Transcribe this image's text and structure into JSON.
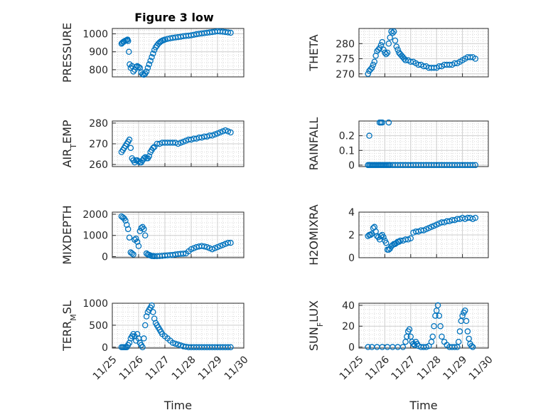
{
  "figure": {
    "title": "Figure 3 low",
    "marker_color": "#0072BD",
    "axis_color": "#262626",
    "grid": true,
    "minor_grid": true
  },
  "chart_data": [
    {
      "type": "scatter",
      "name": "PRESSURE",
      "ylabel": "PRESSURE",
      "xlim": [
        0,
        5
      ],
      "ylim": [
        760,
        1030
      ],
      "yticks": [
        800,
        900,
        1000
      ],
      "xtick_labels": [],
      "x": [
        0.35,
        0.38,
        0.42,
        0.45,
        0.5,
        0.55,
        0.58,
        0.6,
        0.63,
        0.66,
        0.7,
        0.75,
        0.8,
        0.85,
        0.9,
        0.95,
        1.0,
        1.05,
        1.1,
        1.15,
        1.2,
        1.25,
        1.3,
        1.35,
        1.4,
        1.45,
        1.5,
        1.55,
        1.6,
        1.65,
        1.7,
        1.75,
        1.8,
        1.85,
        1.9,
        1.95,
        2.0,
        2.1,
        2.2,
        2.3,
        2.4,
        2.5,
        2.6,
        2.7,
        2.8,
        2.9,
        3.0,
        3.1,
        3.2,
        3.3,
        3.4,
        3.5,
        3.6,
        3.7,
        3.8,
        3.9,
        4.0,
        4.1,
        4.2,
        4.3,
        4.4,
        4.5
      ],
      "y": [
        945,
        950,
        955,
        958,
        962,
        965,
        968,
        960,
        900,
        830,
        810,
        820,
        790,
        800,
        815,
        820,
        815,
        810,
        785,
        775,
        772,
        778,
        790,
        810,
        830,
        850,
        870,
        890,
        910,
        925,
        935,
        945,
        952,
        958,
        962,
        965,
        968,
        972,
        975,
        978,
        980,
        982,
        984,
        987,
        989,
        990,
        992,
        995,
        998,
        1000,
        1002,
        1004,
        1006,
        1008,
        1010,
        1012,
        1014,
        1013,
        1012,
        1010,
        1008,
        1006
      ]
    },
    {
      "type": "scatter",
      "name": "THETA",
      "ylabel": "THETA",
      "xlim": [
        0,
        5
      ],
      "ylim": [
        269,
        285
      ],
      "yticks": [
        270,
        275,
        280
      ],
      "xtick_labels": [],
      "x": [
        0.35,
        0.4,
        0.45,
        0.5,
        0.55,
        0.6,
        0.65,
        0.7,
        0.75,
        0.8,
        0.85,
        0.9,
        0.95,
        1.0,
        1.05,
        1.1,
        1.15,
        1.2,
        1.25,
        1.3,
        1.35,
        1.4,
        1.45,
        1.5,
        1.55,
        1.6,
        1.65,
        1.7,
        1.75,
        1.8,
        1.9,
        2.0,
        2.1,
        2.2,
        2.3,
        2.4,
        2.5,
        2.6,
        2.7,
        2.8,
        2.9,
        3.0,
        3.1,
        3.2,
        3.3,
        3.4,
        3.5,
        3.6,
        3.7,
        3.8,
        3.9,
        4.0,
        4.1,
        4.2,
        4.3,
        4.4,
        4.5
      ],
      "y": [
        270,
        271,
        271.5,
        272,
        273,
        274,
        276,
        277.5,
        278,
        278.5,
        279.5,
        280.5,
        278,
        277,
        276.5,
        277,
        280,
        282,
        284,
        283.5,
        284,
        281,
        279,
        278,
        277,
        276.5,
        276,
        275.5,
        275,
        274.5,
        274.5,
        274,
        274,
        273.5,
        273,
        273,
        272.5,
        272.5,
        272,
        272,
        272,
        272,
        272.5,
        272.5,
        273,
        273,
        273,
        273,
        273.5,
        273.5,
        274,
        274.5,
        275,
        275.5,
        275.5,
        275.5,
        275
      ]
    },
    {
      "type": "scatter",
      "name": "AIR_TEMP",
      "ylabel": "AIR_TEMP",
      "xlim": [
        0,
        5
      ],
      "ylim": [
        259,
        281
      ],
      "yticks": [
        260,
        270,
        280
      ],
      "xtick_labels": [],
      "x": [
        0.35,
        0.4,
        0.45,
        0.5,
        0.55,
        0.6,
        0.65,
        0.7,
        0.75,
        0.8,
        0.85,
        0.9,
        0.95,
        1.0,
        1.05,
        1.1,
        1.15,
        1.2,
        1.25,
        1.3,
        1.35,
        1.4,
        1.45,
        1.5,
        1.55,
        1.6,
        1.7,
        1.8,
        1.9,
        2.0,
        2.1,
        2.2,
        2.3,
        2.4,
        2.5,
        2.6,
        2.7,
        2.8,
        2.9,
        3.0,
        3.1,
        3.2,
        3.3,
        3.4,
        3.5,
        3.6,
        3.7,
        3.8,
        3.9,
        4.0,
        4.1,
        4.2,
        4.3,
        4.4,
        4.5
      ],
      "y": [
        266,
        267,
        268,
        269,
        270,
        271,
        272,
        268,
        263,
        262,
        261,
        262,
        262,
        261.5,
        261,
        261,
        262,
        263,
        263.5,
        263,
        263,
        264,
        266,
        267,
        268,
        268.5,
        270,
        270,
        270.5,
        270.5,
        270.5,
        270.5,
        270.5,
        270.5,
        270,
        270.5,
        271,
        271.5,
        272,
        272,
        272.5,
        272.5,
        273,
        273,
        273.5,
        273.5,
        274,
        274,
        274.5,
        275,
        275.5,
        276,
        276.5,
        276,
        275.5
      ]
    },
    {
      "type": "scatter",
      "name": "RAINFALL",
      "ylabel": "RAINFALL",
      "xlim": [
        0,
        5
      ],
      "ylim": [
        -0.01,
        0.3
      ],
      "yticks": [
        0,
        0.1,
        0.2
      ],
      "xtick_labels": [],
      "x": [
        0.35,
        0.4,
        0.45,
        0.5,
        0.55,
        0.6,
        0.65,
        0.7,
        0.75,
        0.8,
        0.85,
        0.9,
        0.95,
        1.0,
        1.05,
        1.1,
        1.15,
        1.2,
        1.3,
        1.4,
        1.5,
        1.6,
        1.7,
        1.8,
        1.9,
        2.0,
        2.1,
        2.2,
        2.3,
        2.4,
        2.5,
        2.6,
        2.7,
        2.8,
        2.9,
        3.0,
        3.1,
        3.2,
        3.3,
        3.4,
        3.5,
        3.6,
        3.7,
        3.8,
        3.9,
        4.0,
        4.1,
        4.2,
        4.3,
        4.4,
        4.5,
        0.4,
        0.8,
        0.85,
        0.9,
        1.15
      ],
      "y": [
        0,
        0,
        0,
        0,
        0,
        0,
        0,
        0,
        0,
        0,
        0,
        0,
        0,
        0,
        0,
        0,
        0,
        0,
        0,
        0,
        0,
        0,
        0,
        0,
        0,
        0,
        0,
        0,
        0,
        0,
        0,
        0,
        0,
        0,
        0,
        0,
        0,
        0,
        0,
        0,
        0,
        0,
        0,
        0,
        0,
        0,
        0,
        0,
        0,
        0,
        0,
        0.2,
        0.29,
        0.29,
        0.29,
        0.29
      ]
    },
    {
      "type": "scatter",
      "name": "MIXDEPTH",
      "ylabel": "MIXDEPTH",
      "xlim": [
        0,
        5
      ],
      "ylim": [
        -50,
        2100
      ],
      "yticks": [
        0,
        1000,
        2000
      ],
      "xtick_labels": [],
      "x": [
        0.35,
        0.4,
        0.45,
        0.5,
        0.55,
        0.6,
        0.65,
        0.7,
        0.75,
        0.8,
        0.85,
        0.9,
        0.95,
        1.0,
        1.05,
        1.1,
        1.15,
        1.2,
        1.25,
        1.3,
        1.35,
        1.4,
        1.45,
        1.5,
        1.55,
        1.6,
        1.7,
        1.8,
        1.9,
        2.0,
        2.1,
        2.2,
        2.3,
        2.4,
        2.5,
        2.6,
        2.7,
        2.8,
        2.9,
        3.0,
        3.1,
        3.2,
        3.3,
        3.4,
        3.5,
        3.6,
        3.7,
        3.8,
        3.9,
        4.0,
        4.1,
        4.2,
        4.3,
        4.4,
        4.5
      ],
      "y": [
        1900,
        1850,
        1800,
        1700,
        1500,
        1300,
        900,
        200,
        150,
        100,
        800,
        850,
        700,
        500,
        1200,
        1350,
        1400,
        1300,
        1000,
        150,
        100,
        80,
        50,
        30,
        30,
        20,
        20,
        30,
        40,
        50,
        60,
        70,
        80,
        100,
        120,
        130,
        140,
        150,
        250,
        350,
        400,
        450,
        480,
        500,
        480,
        450,
        400,
        350,
        400,
        450,
        500,
        550,
        600,
        650,
        650
      ]
    },
    {
      "type": "scatter",
      "name": "H2OMIXRA",
      "ylabel": "H2OMIXRA",
      "xlim": [
        0,
        5
      ],
      "ylim": [
        0,
        4
      ],
      "yticks": [
        0,
        2,
        4
      ],
      "xtick_labels": [],
      "x": [
        0.35,
        0.4,
        0.45,
        0.5,
        0.55,
        0.6,
        0.65,
        0.7,
        0.75,
        0.8,
        0.85,
        0.9,
        0.95,
        1.0,
        1.05,
        1.1,
        1.15,
        1.2,
        1.25,
        1.3,
        1.35,
        1.4,
        1.45,
        1.5,
        1.55,
        1.6,
        1.7,
        1.8,
        1.9,
        2.0,
        2.1,
        2.2,
        2.3,
        2.4,
        2.5,
        2.6,
        2.7,
        2.8,
        2.9,
        3.0,
        3.1,
        3.2,
        3.3,
        3.4,
        3.5,
        3.6,
        3.7,
        3.8,
        3.9,
        4.0,
        4.1,
        4.2,
        4.3,
        4.4,
        4.5
      ],
      "y": [
        1.9,
        2.0,
        2.0,
        2.1,
        2.6,
        2.7,
        2.3,
        1.9,
        1.8,
        1.6,
        1.9,
        2.0,
        1.8,
        1.5,
        1.3,
        0.7,
        0.7,
        0.8,
        1.0,
        1.1,
        1.2,
        1.2,
        1.3,
        1.4,
        1.4,
        1.5,
        1.5,
        1.6,
        1.6,
        1.7,
        2.2,
        2.3,
        2.3,
        2.4,
        2.4,
        2.5,
        2.6,
        2.7,
        2.8,
        2.9,
        3.0,
        3.1,
        3.1,
        3.2,
        3.2,
        3.3,
        3.3,
        3.4,
        3.4,
        3.5,
        3.4,
        3.5,
        3.5,
        3.4,
        3.5
      ]
    },
    {
      "type": "scatter",
      "name": "TERR_MSL",
      "ylabel": "TERR_MSL",
      "xlim": [
        0,
        5
      ],
      "ylim": [
        -20,
        1000
      ],
      "yticks": [
        0,
        500,
        1000
      ],
      "xtick_labels": [
        "11/25",
        "11/26",
        "11/27",
        "11/28",
        "11/29",
        "11/30"
      ],
      "xlabel": "Time",
      "x": [
        0.35,
        0.4,
        0.45,
        0.5,
        0.55,
        0.6,
        0.65,
        0.7,
        0.75,
        0.8,
        0.85,
        0.9,
        0.95,
        1.0,
        1.05,
        1.1,
        1.15,
        1.2,
        1.25,
        1.3,
        1.35,
        1.4,
        1.45,
        1.5,
        1.55,
        1.6,
        1.65,
        1.7,
        1.75,
        1.8,
        1.85,
        1.9,
        2.0,
        2.1,
        2.2,
        2.3,
        2.4,
        2.5,
        2.6,
        2.7,
        2.8,
        2.9,
        3.0,
        3.1,
        3.2,
        3.3,
        3.4,
        3.5,
        3.6,
        3.7,
        3.8,
        3.9,
        4.0,
        4.1,
        4.2,
        4.3,
        4.4,
        4.5
      ],
      "y": [
        0,
        0,
        0,
        0,
        0,
        50,
        100,
        200,
        250,
        300,
        250,
        150,
        300,
        200,
        100,
        50,
        0,
        200,
        500,
        700,
        800,
        850,
        900,
        950,
        800,
        650,
        550,
        500,
        450,
        400,
        350,
        300,
        250,
        200,
        150,
        100,
        80,
        60,
        40,
        20,
        10,
        0,
        0,
        0,
        0,
        0,
        0,
        0,
        0,
        0,
        0,
        0,
        0,
        0,
        0,
        0,
        0,
        0
      ]
    },
    {
      "type": "scatter",
      "name": "SUN_FLUX",
      "ylabel": "SUN_FLUX",
      "xlim": [
        0,
        5
      ],
      "ylim": [
        -1,
        42
      ],
      "yticks": [
        0,
        20,
        40
      ],
      "xtick_labels": [
        "11/25",
        "11/26",
        "11/27",
        "11/28",
        "11/29",
        "11/30"
      ],
      "xlabel": "Time",
      "x": [
        0.35,
        0.5,
        0.7,
        0.9,
        1.1,
        1.3,
        1.5,
        1.7,
        1.8,
        1.85,
        1.9,
        1.95,
        2.0,
        2.05,
        2.1,
        2.15,
        2.2,
        2.25,
        2.3,
        2.4,
        2.5,
        2.6,
        2.7,
        2.8,
        2.85,
        2.9,
        2.95,
        3.0,
        3.05,
        3.1,
        3.15,
        3.2,
        3.3,
        3.4,
        3.5,
        3.6,
        3.7,
        3.8,
        3.85,
        3.9,
        3.95,
        4.0,
        4.05,
        4.1,
        4.15,
        4.2,
        4.25,
        4.3,
        4.35,
        4.4
      ],
      "y": [
        0,
        0,
        0,
        0,
        0,
        0,
        0,
        0,
        5,
        10,
        15,
        17,
        10,
        5,
        3,
        2,
        5,
        3,
        1,
        0,
        0,
        0,
        1,
        5,
        10,
        20,
        30,
        35,
        40,
        30,
        20,
        10,
        5,
        2,
        0,
        0,
        0,
        0,
        5,
        15,
        25,
        30,
        33,
        35,
        25,
        15,
        8,
        3,
        1,
        0
      ]
    }
  ]
}
